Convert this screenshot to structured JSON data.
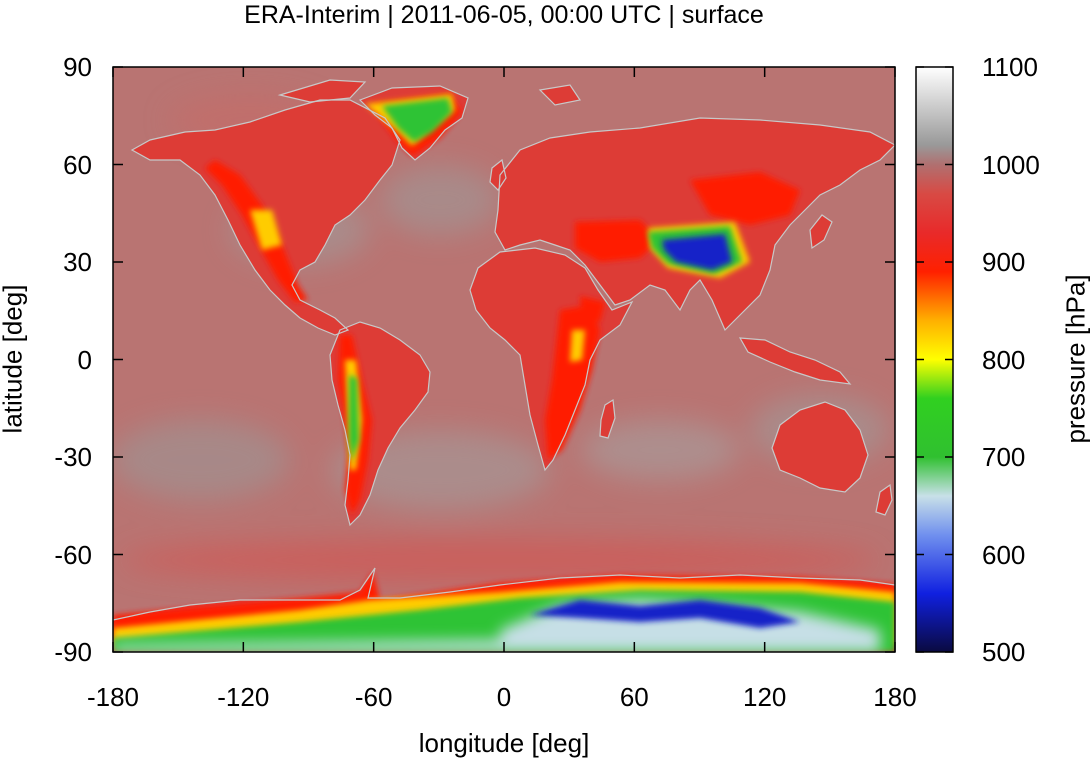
{
  "title": "ERA-Interim | 2011-06-05, 00:00 UTC | surface",
  "axes": {
    "xlabel": "longitude [deg]",
    "ylabel": "latitude [deg]",
    "xlim": [
      -180,
      180
    ],
    "ylim": [
      -90,
      90
    ],
    "xticks": [
      "-180",
      "-120",
      "-60",
      "0",
      "60",
      "120",
      "180"
    ],
    "yticks": [
      "90",
      "60",
      "30",
      "0",
      "-30",
      "-60",
      "-90"
    ]
  },
  "colorbar": {
    "label": "pressure [hPa]",
    "range": [
      500,
      1100
    ],
    "ticks": [
      "1100",
      "1000",
      "900",
      "800",
      "700",
      "600",
      "500"
    ],
    "stops": [
      {
        "value": 500,
        "color": "#0a0a40"
      },
      {
        "value": 560,
        "color": "#1020e0"
      },
      {
        "value": 620,
        "color": "#7090ee"
      },
      {
        "value": 660,
        "color": "#c8e0e8"
      },
      {
        "value": 700,
        "color": "#30c030"
      },
      {
        "value": 760,
        "color": "#30d020"
      },
      {
        "value": 800,
        "color": "#ffff00"
      },
      {
        "value": 840,
        "color": "#ffb000"
      },
      {
        "value": 890,
        "color": "#ff2000"
      },
      {
        "value": 930,
        "color": "#e82a2a"
      },
      {
        "value": 970,
        "color": "#d84a44"
      },
      {
        "value": 1000,
        "color": "#b07070"
      },
      {
        "value": 1020,
        "color": "#999999"
      },
      {
        "value": 1060,
        "color": "#cccccc"
      },
      {
        "value": 1100,
        "color": "#ffffff"
      }
    ]
  },
  "colors": {
    "ocean": "#b97472",
    "land": "#dd3c36",
    "highland": "#ff1c00",
    "plateau": "#ffcc00",
    "ice": "#2fc335",
    "tibet": "#1622c8",
    "coastline": "#c8c8c8"
  }
}
